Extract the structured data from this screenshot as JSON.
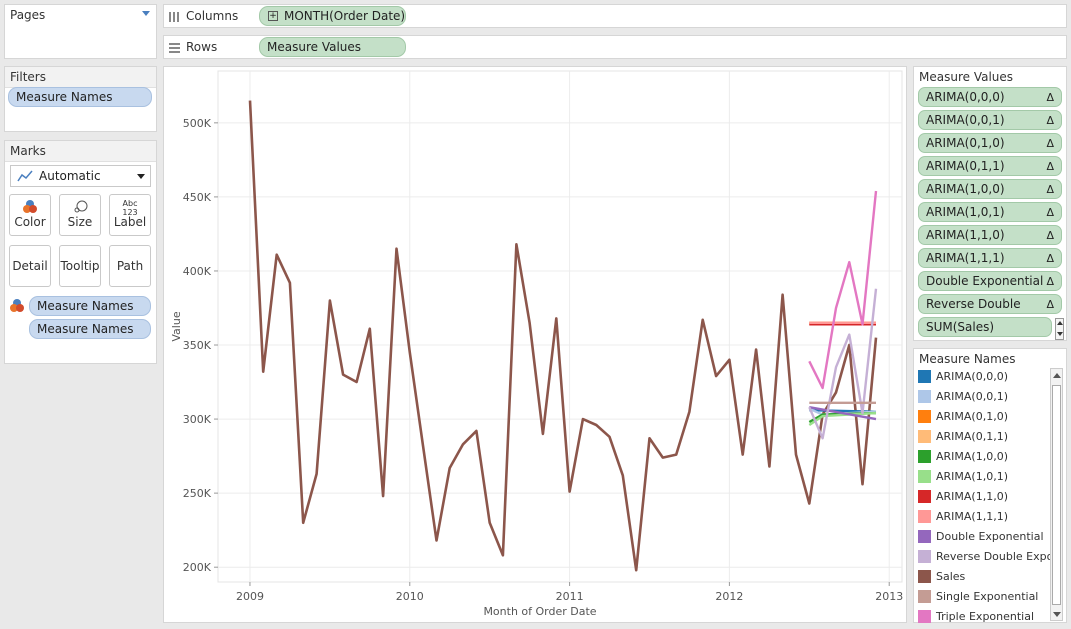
{
  "pages": {
    "title": "Pages"
  },
  "columns": {
    "label": "Columns",
    "pill": "MONTH(Order Date)"
  },
  "rows": {
    "label": "Rows",
    "pill": "Measure Values"
  },
  "filters": {
    "title": "Filters",
    "items": [
      "Measure Names"
    ]
  },
  "marks": {
    "title": "Marks",
    "type": "Automatic",
    "buttons": {
      "color": "Color",
      "size": "Size",
      "label": "Label",
      "label_icon": "Abc 123",
      "detail": "Detail",
      "tooltip": "Tooltip",
      "path": "Path"
    },
    "fields": [
      "Measure Names",
      "Measure Names"
    ]
  },
  "measure_values": {
    "title": "Measure Values",
    "items": [
      "ARIMA(0,0,0)",
      "ARIMA(0,0,1)",
      "ARIMA(0,1,0)",
      "ARIMA(0,1,1)",
      "ARIMA(1,0,0)",
      "ARIMA(1,0,1)",
      "ARIMA(1,1,0)",
      "ARIMA(1,1,1)",
      "Double Exponential",
      "Reverse Double Expo..",
      "SUM(Sales)"
    ],
    "delta": "Δ"
  },
  "legend": {
    "title": "Measure Names",
    "items": [
      {
        "label": "ARIMA(0,0,0)",
        "color": "#1f77b4"
      },
      {
        "label": "ARIMA(0,0,1)",
        "color": "#aec7e8"
      },
      {
        "label": "ARIMA(0,1,0)",
        "color": "#ff7f0e"
      },
      {
        "label": "ARIMA(0,1,1)",
        "color": "#ffbb78"
      },
      {
        "label": "ARIMA(1,0,0)",
        "color": "#2ca02c"
      },
      {
        "label": "ARIMA(1,0,1)",
        "color": "#98df8a"
      },
      {
        "label": "ARIMA(1,1,0)",
        "color": "#d62728"
      },
      {
        "label": "ARIMA(1,1,1)",
        "color": "#ff9896"
      },
      {
        "label": "Double Exponential",
        "color": "#9467bd"
      },
      {
        "label": "Reverse Double Expo..",
        "color": "#c5b0d5"
      },
      {
        "label": "Sales",
        "color": "#8c564b"
      },
      {
        "label": "Single Exponential",
        "color": "#c49c94"
      },
      {
        "label": "Triple Exponential",
        "color": "#e377c2"
      }
    ]
  },
  "chart_data": {
    "type": "line",
    "title": "",
    "xlabel": "Month of Order Date",
    "ylabel": "Value",
    "x_ticks": [
      "2009",
      "2010",
      "2011",
      "2012",
      "2013"
    ],
    "y_ticks": [
      "200K",
      "250K",
      "300K",
      "350K",
      "400K",
      "450K",
      "500K"
    ],
    "xlim": [
      2008.8,
      2013.08
    ],
    "ylim": [
      190000,
      535000
    ],
    "grid": true,
    "legend": "right",
    "series": [
      {
        "name": "Sales",
        "color": "#8c564b",
        "x": [
          2009.0,
          2009.083,
          2009.167,
          2009.25,
          2009.333,
          2009.417,
          2009.5,
          2009.583,
          2009.667,
          2009.75,
          2009.833,
          2009.917,
          2010.0,
          2010.083,
          2010.167,
          2010.25,
          2010.333,
          2010.417,
          2010.5,
          2010.583,
          2010.667,
          2010.75,
          2010.833,
          2010.917,
          2011.0,
          2011.083,
          2011.167,
          2011.25,
          2011.333,
          2011.417,
          2011.5,
          2011.583,
          2011.667,
          2011.75,
          2011.833,
          2011.917,
          2012.0,
          2012.083,
          2012.167,
          2012.25,
          2012.333,
          2012.417,
          2012.5,
          2012.583,
          2012.667,
          2012.75,
          2012.833,
          2012.917
        ],
        "values": [
          515000,
          332000,
          411000,
          392000,
          230000,
          263000,
          380000,
          330000,
          325000,
          361000,
          248000,
          415000,
          345000,
          282000,
          218000,
          267000,
          283000,
          292000,
          230000,
          208000,
          418000,
          365000,
          290000,
          368000,
          251000,
          300000,
          296000,
          288000,
          262000,
          198000,
          287000,
          274000,
          276000,
          305000,
          367000,
          329000,
          340000,
          276000,
          347000,
          268000,
          384000,
          276000,
          243000,
          303000,
          318000,
          350000,
          256000,
          355000
        ]
      },
      {
        "name": "ARIMA(0,0,0)",
        "color": "#1f77b4",
        "x": [
          2012.5,
          2012.917
        ],
        "values": [
          306000,
          305000
        ]
      },
      {
        "name": "ARIMA(0,0,1)",
        "color": "#aec7e8",
        "x": [
          2012.5,
          2012.583,
          2012.917
        ],
        "values": [
          307000,
          303000,
          305000
        ]
      },
      {
        "name": "ARIMA(0,1,0)",
        "color": "#ff7f0e",
        "x": [
          2012.5,
          2012.917
        ],
        "values": [
          365000,
          365000
        ]
      },
      {
        "name": "ARIMA(0,1,1)",
        "color": "#ffbb78",
        "x": [
          2012.5,
          2012.917
        ],
        "values": [
          364000,
          364000
        ]
      },
      {
        "name": "ARIMA(1,0,0)",
        "color": "#2ca02c",
        "x": [
          2012.5,
          2012.583,
          2012.917
        ],
        "values": [
          298000,
          303000,
          304000
        ]
      },
      {
        "name": "ARIMA(1,0,1)",
        "color": "#98df8a",
        "x": [
          2012.5,
          2012.583,
          2012.917
        ],
        "values": [
          296000,
          302000,
          304000
        ]
      },
      {
        "name": "ARIMA(1,1,0)",
        "color": "#d62728",
        "x": [
          2012.5,
          2012.917
        ],
        "values": [
          364000,
          364000
        ]
      },
      {
        "name": "ARIMA(1,1,1)",
        "color": "#ff9896",
        "x": [
          2012.5,
          2012.917
        ],
        "values": [
          365000,
          365000
        ]
      },
      {
        "name": "Double Exponential",
        "color": "#9467bd",
        "x": [
          2012.5,
          2012.917
        ],
        "values": [
          308000,
          300000
        ]
      },
      {
        "name": "Reverse Double Expo..",
        "color": "#c5b0d5",
        "x": [
          2012.5,
          2012.583,
          2012.667,
          2012.75,
          2012.833,
          2012.917
        ],
        "values": [
          308000,
          287000,
          335000,
          357000,
          304000,
          388000
        ]
      },
      {
        "name": "Single Exponential",
        "color": "#c49c94",
        "x": [
          2012.5,
          2012.917
        ],
        "values": [
          311000,
          311000
        ]
      },
      {
        "name": "Triple Exponential",
        "color": "#e377c2",
        "x": [
          2012.5,
          2012.583,
          2012.667,
          2012.75,
          2012.833,
          2012.917
        ],
        "values": [
          339000,
          321000,
          375000,
          406000,
          364000,
          454000
        ]
      }
    ]
  }
}
